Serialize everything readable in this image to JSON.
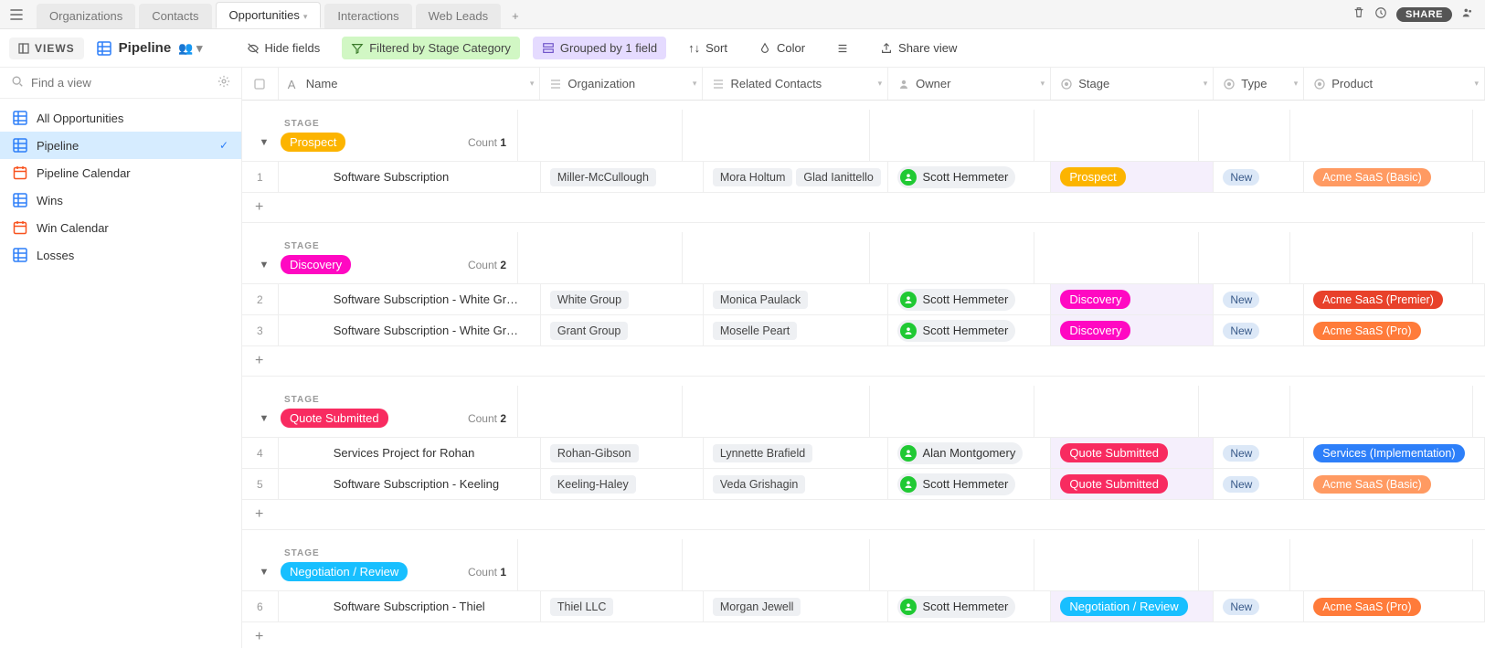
{
  "tabs": [
    {
      "label": "Organizations",
      "active": false
    },
    {
      "label": "Contacts",
      "active": false
    },
    {
      "label": "Opportunities",
      "active": true
    },
    {
      "label": "Interactions",
      "active": false
    },
    {
      "label": "Web Leads",
      "active": false
    }
  ],
  "topright": {
    "share": "SHARE"
  },
  "toolbar": {
    "views": "VIEWS",
    "viewname": "Pipeline",
    "hide_fields": "Hide fields",
    "filter_chip": "Filtered by Stage Category",
    "group_chip": "Grouped by 1 field",
    "sort": "Sort",
    "color": "Color",
    "share_view": "Share view"
  },
  "sidebar": {
    "search_placeholder": "Find a view",
    "views": [
      {
        "label": "All Opportunities",
        "icon": "grid",
        "color": "#2d7ff9",
        "active": false
      },
      {
        "label": "Pipeline",
        "icon": "grid",
        "color": "#2d7ff9",
        "active": true
      },
      {
        "label": "Pipeline Calendar",
        "icon": "cal",
        "color": "#f8521e",
        "active": false
      },
      {
        "label": "Wins",
        "icon": "grid",
        "color": "#2d7ff9",
        "active": false
      },
      {
        "label": "Win Calendar",
        "icon": "cal",
        "color": "#f8521e",
        "active": false
      },
      {
        "label": "Losses",
        "icon": "grid",
        "color": "#2d7ff9",
        "active": false
      }
    ]
  },
  "columns": [
    {
      "key": "name",
      "label": "Name",
      "icon": "A"
    },
    {
      "key": "org",
      "label": "Organization",
      "icon": "list"
    },
    {
      "key": "rel",
      "label": "Related Contacts",
      "icon": "list"
    },
    {
      "key": "owner",
      "label": "Owner",
      "icon": "person"
    },
    {
      "key": "stage",
      "label": "Stage",
      "icon": "tag"
    },
    {
      "key": "type",
      "label": "Type",
      "icon": "tag"
    },
    {
      "key": "product",
      "label": "Product",
      "icon": "tag"
    }
  ],
  "stage_label": "STAGE",
  "count_label": "Count",
  "colors": {
    "prospect": "#fcb400",
    "discovery": "#ff08c2",
    "quote": "#f82b60",
    "negotiation": "#18bfff",
    "type_new_bg": "#dce8f7",
    "avatar_green": "#20c933",
    "org_chip": "#eef0f3",
    "prod_basic": "#ff9a62",
    "prod_premier": "#e8412a",
    "prod_pro": "#ff7b3a",
    "prod_services": "#2d7ff9"
  },
  "groups": [
    {
      "stage": "Prospect",
      "stage_color": "prospect",
      "count": 1,
      "rows": [
        {
          "num": 1,
          "name": "Software Subscription",
          "org": "Miller-McCullough",
          "contacts": [
            "Mora Holtum",
            "Glad Ianittello"
          ],
          "owner": "Scott Hemmeter",
          "stage": "Prospect",
          "stage_color": "prospect",
          "type": "New",
          "product": "Acme SaaS (Basic)",
          "product_color": "prod_basic"
        }
      ]
    },
    {
      "stage": "Discovery",
      "stage_color": "discovery",
      "count": 2,
      "rows": [
        {
          "num": 2,
          "name": "Software Subscription - White Gr…",
          "org": "White Group",
          "contacts": [
            "Monica Paulack"
          ],
          "owner": "Scott Hemmeter",
          "stage": "Discovery",
          "stage_color": "discovery",
          "type": "New",
          "product": "Acme SaaS (Premier)",
          "product_color": "prod_premier"
        },
        {
          "num": 3,
          "name": "Software Subscription - White Gr…",
          "org": "Grant Group",
          "contacts": [
            "Moselle Peart"
          ],
          "owner": "Scott Hemmeter",
          "stage": "Discovery",
          "stage_color": "discovery",
          "type": "New",
          "product": "Acme SaaS (Pro)",
          "product_color": "prod_pro"
        }
      ]
    },
    {
      "stage": "Quote Submitted",
      "stage_color": "quote",
      "count": 2,
      "rows": [
        {
          "num": 4,
          "name": "Services Project for Rohan",
          "org": "Rohan-Gibson",
          "contacts": [
            "Lynnette Brafield"
          ],
          "owner": "Alan Montgomery",
          "stage": "Quote Submitted",
          "stage_color": "quote",
          "type": "New",
          "product": "Services (Implementation)",
          "product_color": "prod_services"
        },
        {
          "num": 5,
          "name": "Software Subscription - Keeling",
          "org": "Keeling-Haley",
          "contacts": [
            "Veda Grishagin"
          ],
          "owner": "Scott Hemmeter",
          "stage": "Quote Submitted",
          "stage_color": "quote",
          "type": "New",
          "product": "Acme SaaS (Basic)",
          "product_color": "prod_basic"
        }
      ]
    },
    {
      "stage": "Negotiation / Review",
      "stage_color": "negotiation",
      "count": 1,
      "rows": [
        {
          "num": 6,
          "name": "Software Subscription - Thiel",
          "org": "Thiel LLC",
          "contacts": [
            "Morgan Jewell"
          ],
          "owner": "Scott Hemmeter",
          "stage": "Negotiation / Review",
          "stage_color": "negotiation",
          "type": "New",
          "product": "Acme SaaS (Pro)",
          "product_color": "prod_pro"
        }
      ]
    }
  ]
}
